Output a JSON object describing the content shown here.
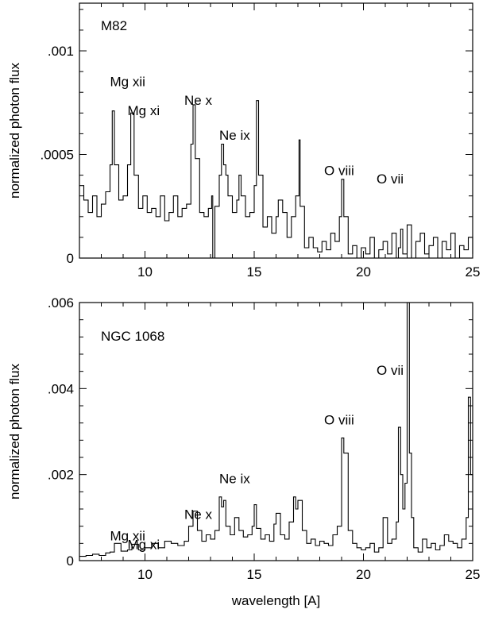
{
  "chart_data": [
    {
      "type": "line",
      "title": "M82",
      "xlabel": "",
      "ylabel": "normalized photon flux",
      "xlim": [
        7,
        25
      ],
      "ylim": [
        0,
        0.00123
      ],
      "xticks": [
        {
          "value": 10,
          "label": "10"
        },
        {
          "value": 15,
          "label": "15"
        },
        {
          "value": 20,
          "label": "20"
        },
        {
          "value": 25,
          "label": "25"
        }
      ],
      "yticks": [
        {
          "value": 0,
          "label": "0"
        },
        {
          "value": 0.0005,
          "label": ".0005"
        },
        {
          "value": 0.001,
          "label": ".001"
        }
      ],
      "annotations": [
        {
          "text": "Mg xii",
          "x": 8.4,
          "y": 0.00083
        },
        {
          "text": "Mg xi",
          "x": 9.2,
          "y": 0.00069
        },
        {
          "text": "Ne x",
          "x": 11.8,
          "y": 0.00074
        },
        {
          "text": "Ne ix",
          "x": 13.4,
          "y": 0.00057
        },
        {
          "text": "O viii",
          "x": 18.2,
          "y": 0.0004
        },
        {
          "text": "O vii",
          "x": 20.6,
          "y": 0.00036
        }
      ],
      "series": [
        {
          "x": [
            7.0,
            7.2,
            7.4,
            7.6,
            7.8,
            8.0,
            8.2,
            8.4,
            8.5,
            8.6,
            8.8,
            9.0,
            9.2,
            9.35,
            9.5,
            9.7,
            9.9,
            10.1,
            10.3,
            10.5,
            10.7,
            10.9,
            11.1,
            11.3,
            11.5,
            11.7,
            11.9,
            12.1,
            12.2,
            12.3,
            12.5,
            12.7,
            12.9,
            13.05,
            13.1,
            13.2,
            13.4,
            13.5,
            13.6,
            13.7,
            13.8,
            14.0,
            14.2,
            14.3,
            14.4,
            14.6,
            14.8,
            15.0,
            15.1,
            15.2,
            15.4,
            15.6,
            15.8,
            16.0,
            16.1,
            16.3,
            16.5,
            16.7,
            16.9,
            17.05,
            17.1,
            17.3,
            17.5,
            17.7,
            17.9,
            18.1,
            18.3,
            18.5,
            18.7,
            18.9,
            19.0,
            19.1,
            19.3,
            19.5,
            19.7,
            19.9,
            20.1,
            20.3,
            20.5,
            20.7,
            20.9,
            21.1,
            21.3,
            21.5,
            21.6,
            21.7,
            21.8,
            22.0,
            22.2,
            22.4,
            22.6,
            22.8,
            23.0,
            23.2,
            23.4,
            23.6,
            23.8,
            24.0,
            24.2,
            24.4,
            24.6,
            24.8,
            25.0
          ],
          "y": [
            0.00035,
            0.00028,
            0.00022,
            0.0003,
            0.0002,
            0.00026,
            0.00032,
            0.00045,
            0.00071,
            0.00045,
            0.00028,
            0.0003,
            0.00045,
            0.0007,
            0.0004,
            0.00024,
            0.0003,
            0.00022,
            0.00024,
            0.0002,
            0.0003,
            0.00018,
            0.00022,
            0.0003,
            0.0002,
            0.00024,
            0.00026,
            0.00055,
            0.00074,
            0.00048,
            0.00022,
            0.0002,
            0.00024,
            0.0003,
            0.0,
            0.00025,
            0.0004,
            0.00055,
            0.00045,
            0.0004,
            0.0003,
            0.00022,
            0.00028,
            0.0004,
            0.0003,
            0.0002,
            0.00022,
            0.00035,
            0.00076,
            0.0004,
            0.00015,
            0.0002,
            0.00012,
            0.0002,
            0.00028,
            0.00022,
            0.0001,
            0.0002,
            0.0003,
            0.00057,
            0.00025,
            5e-05,
            0.0001,
            5e-05,
            3e-05,
            8e-05,
            4e-05,
            0.00012,
            8e-05,
            0.0002,
            0.00038,
            0.0002,
            2e-05,
            6e-05,
            0.0,
            5e-05,
            2e-05,
            0.0001,
            0.0,
            4e-05,
            8e-05,
            2e-05,
            0.00012,
            0.0,
            5e-05,
            0.00014,
            2e-05,
            0.00016,
            0.0,
            8e-05,
            0.00012,
            2e-05,
            6e-05,
            0.0001,
            0.0,
            8e-05,
            4e-05,
            0.00012,
            0.0,
            6e-05,
            4e-05,
            0.0001,
            2e-05
          ]
        }
      ]
    },
    {
      "type": "line",
      "title": "NGC 1068",
      "xlabel": "wavelength [A]",
      "ylabel": "normalized photon flux",
      "xlim": [
        7,
        25
      ],
      "ylim": [
        0,
        0.006
      ],
      "xticks": [
        {
          "value": 10,
          "label": "10"
        },
        {
          "value": 15,
          "label": "15"
        },
        {
          "value": 20,
          "label": "20"
        },
        {
          "value": 25,
          "label": "25"
        }
      ],
      "yticks": [
        {
          "value": 0,
          "label": "0"
        },
        {
          "value": 0.002,
          "label": ".002"
        },
        {
          "value": 0.004,
          "label": ".004"
        },
        {
          "value": 0.006,
          "label": ".006"
        }
      ],
      "annotations": [
        {
          "text": "Mg xii",
          "x": 8.4,
          "y": 0.00047
        },
        {
          "text": "Mg xi",
          "x": 9.2,
          "y": 0.00027
        },
        {
          "text": "Ne x",
          "x": 11.8,
          "y": 0.00097
        },
        {
          "text": "Ne ix",
          "x": 13.4,
          "y": 0.0018
        },
        {
          "text": "O viii",
          "x": 18.2,
          "y": 0.00317
        },
        {
          "text": "O vii",
          "x": 20.6,
          "y": 0.00432
        }
      ],
      "series": [
        {
          "x": [
            7.0,
            7.3,
            7.6,
            7.9,
            8.2,
            8.4,
            8.6,
            8.9,
            9.2,
            9.4,
            9.7,
            10.0,
            10.3,
            10.6,
            10.9,
            11.2,
            11.5,
            11.8,
            12.0,
            12.2,
            12.4,
            12.6,
            12.8,
            13.0,
            13.2,
            13.4,
            13.5,
            13.6,
            13.7,
            13.9,
            14.1,
            14.3,
            14.5,
            14.7,
            14.9,
            15.0,
            15.1,
            15.3,
            15.5,
            15.7,
            15.9,
            16.0,
            16.2,
            16.4,
            16.6,
            16.8,
            16.9,
            17.0,
            17.2,
            17.4,
            17.6,
            17.8,
            18.0,
            18.2,
            18.4,
            18.6,
            18.8,
            19.0,
            19.1,
            19.3,
            19.5,
            19.7,
            19.9,
            20.1,
            20.3,
            20.5,
            20.7,
            20.9,
            21.1,
            21.3,
            21.5,
            21.6,
            21.7,
            21.8,
            21.9,
            22.0,
            22.1,
            22.2,
            22.3,
            22.5,
            22.7,
            22.9,
            23.1,
            23.3,
            23.5,
            23.7,
            23.9,
            24.1,
            24.3,
            24.5,
            24.7,
            24.8,
            24.9,
            25.0
          ],
          "y": [
            0.0001,
            0.00012,
            0.00015,
            0.00012,
            0.00018,
            0.0002,
            0.0004,
            0.00022,
            0.00025,
            0.00038,
            0.00025,
            0.0003,
            0.0004,
            0.0003,
            0.00045,
            0.0004,
            0.00035,
            0.00045,
            0.0008,
            0.00115,
            0.0007,
            0.00045,
            0.0006,
            0.0005,
            0.0007,
            0.00148,
            0.00125,
            0.0014,
            0.0008,
            0.0006,
            0.001,
            0.0007,
            0.00055,
            0.0006,
            0.0008,
            0.0013,
            0.00075,
            0.0005,
            0.0006,
            0.00045,
            0.00085,
            0.0011,
            0.0006,
            0.0005,
            0.0009,
            0.00148,
            0.0012,
            0.0014,
            0.0007,
            0.0004,
            0.0005,
            0.00035,
            0.00045,
            0.0004,
            0.00035,
            0.0006,
            0.0008,
            0.00285,
            0.0025,
            0.0007,
            0.0004,
            0.0003,
            0.00025,
            0.0003,
            0.0004,
            0.0002,
            0.0003,
            0.001,
            0.0004,
            0.0005,
            0.0009,
            0.0031,
            0.002,
            0.0012,
            0.0018,
            0.006,
            0.0025,
            0.001,
            0.0003,
            0.0002,
            0.0005,
            0.0003,
            0.0004,
            0.00025,
            0.00035,
            0.0006,
            0.00045,
            0.0004,
            0.0003,
            0.0005,
            0.001,
            0.0038,
            0.002,
            0.0008
          ]
        }
      ]
    }
  ]
}
